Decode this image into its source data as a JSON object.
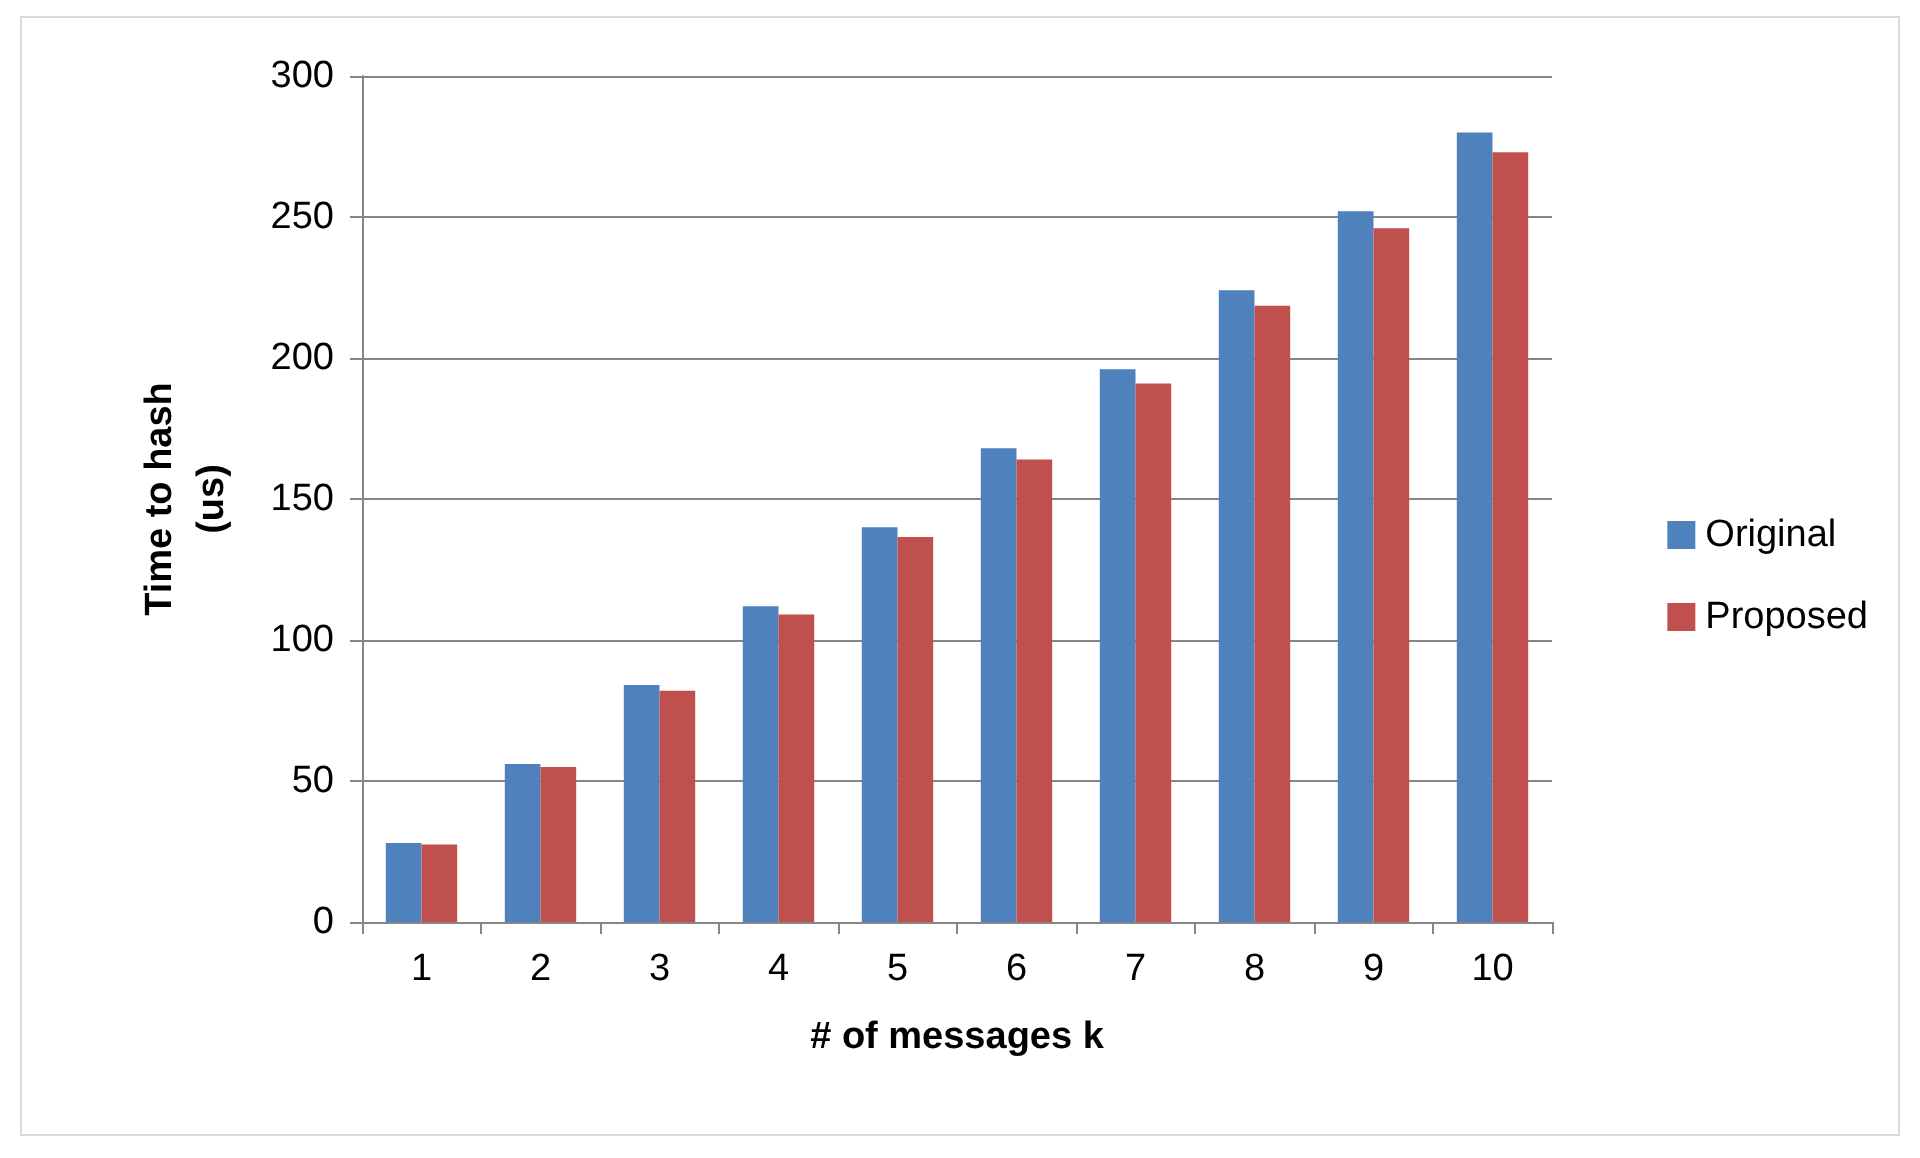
{
  "chart_data": {
    "type": "bar",
    "xlabel": "# of messages k",
    "ylabel": "Time to hash\n(us)",
    "categories": [
      "1",
      "2",
      "3",
      "4",
      "5",
      "6",
      "7",
      "8",
      "9",
      "10"
    ],
    "series": [
      {
        "name": "Original",
        "color": "#4f81bd",
        "values": [
          28,
          56,
          84,
          112,
          140,
          168,
          196,
          224,
          252,
          280
        ]
      },
      {
        "name": "Proposed",
        "color": "#c0504d",
        "values": [
          27.5,
          55,
          82,
          109,
          136.5,
          164,
          191,
          218.5,
          246,
          273
        ]
      }
    ],
    "ylim": [
      0,
      300
    ],
    "yticks": [
      0,
      50,
      100,
      150,
      200,
      250,
      300
    ],
    "grid": "y",
    "legend": "right"
  }
}
